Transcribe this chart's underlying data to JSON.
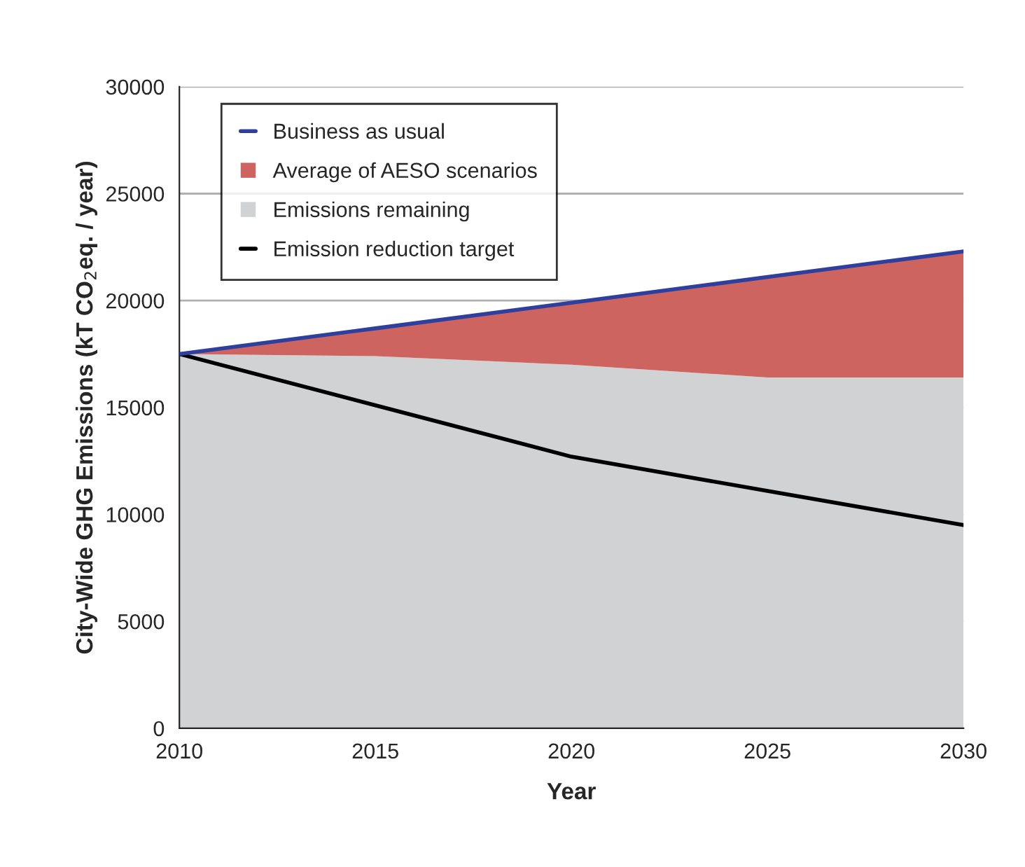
{
  "chart_data": {
    "type": "area",
    "stacked": true,
    "x": [
      2010,
      2015,
      2020,
      2025,
      2030
    ],
    "xlabel": "Year",
    "ylabel": "City-Wide GHG Emissions (kT CO$_{2}$eq. / year)",
    "series": [
      {
        "name": "Emission reduction target",
        "type": "line",
        "color": "#000000",
        "values": [
          17500,
          15100,
          12700,
          11100,
          9500
        ]
      },
      {
        "name": "Emissions remaining",
        "color": "#d1d2d4",
        "values": [
          17500,
          17400,
          17000,
          16400,
          16400
        ]
      },
      {
        "name": "Average of AESO scenarios",
        "color": "#cd6460",
        "values": [
          0,
          1300,
          2900,
          4700,
          5900
        ]
      },
      {
        "name": "Business as usual",
        "type": "line",
        "color": "#2e3f9e",
        "values": [
          17500,
          18700,
          19900,
          21100,
          22300
        ]
      }
    ],
    "xlim": [
      2010,
      2030
    ],
    "xticks": [
      2010,
      2015,
      2020,
      2025,
      2030
    ],
    "ylim": [
      0,
      30000
    ],
    "yticks": [
      0,
      5000,
      10000,
      15000,
      20000,
      25000,
      30000
    ],
    "grid": "y",
    "legend": "top left"
  }
}
